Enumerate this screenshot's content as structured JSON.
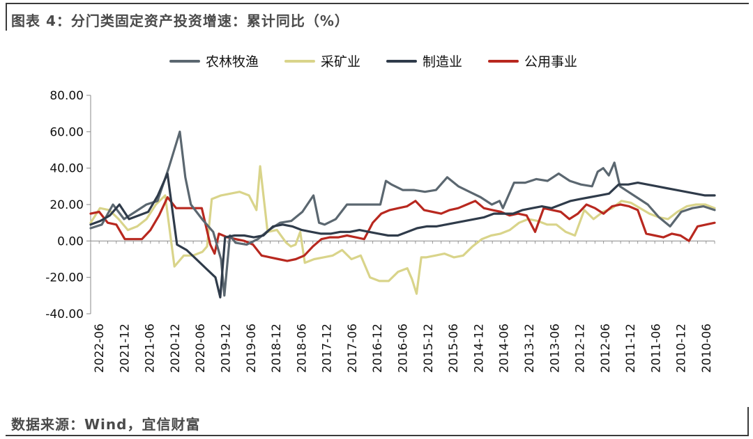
{
  "title": "图表 4：分门类固定资产投资增速：累计同比（%）",
  "source": "数据来源：Wind，宜信财富",
  "chart_data": {
    "type": "line",
    "title": "图表 4：分门类固定资产投资增速：累计同比（%）",
    "xlabel": "",
    "ylabel": "",
    "ylim": [
      -40,
      80
    ],
    "yticks": [
      "80.00",
      "60.00",
      "40.00",
      "20.00",
      "0.00",
      "-20.00",
      "-40.00"
    ],
    "xticks": [
      "2022-06",
      "2021-12",
      "2021-06",
      "2020-12",
      "2020-06",
      "2019-12",
      "2019-06",
      "2018-12",
      "2018-06",
      "2017-12",
      "2017-06",
      "2016-12",
      "2016-06",
      "2015-12",
      "2015-06",
      "2014-12",
      "2014-06",
      "2013-12",
      "2013-06",
      "2012-12",
      "2012-06",
      "2011-12",
      "2011-06",
      "2010-12",
      "2010-06"
    ],
    "legend_position": "top",
    "grid": false,
    "series": [
      {
        "name": "农林牧渔",
        "color": "#5b6770",
        "points": [
          [
            0,
            7
          ],
          [
            1,
            9
          ],
          [
            2,
            20
          ],
          [
            3,
            12
          ],
          [
            4,
            16
          ],
          [
            5,
            20
          ],
          [
            6,
            22
          ],
          [
            7,
            40
          ],
          [
            8,
            60
          ],
          [
            8.5,
            35
          ],
          [
            9,
            20
          ],
          [
            10,
            12
          ],
          [
            11,
            5
          ],
          [
            11.7,
            -10
          ],
          [
            12,
            -30
          ],
          [
            12.5,
            3
          ],
          [
            13,
            -1
          ],
          [
            14,
            -2
          ],
          [
            15,
            1
          ],
          [
            16,
            6
          ],
          [
            17,
            10
          ],
          [
            18,
            11
          ],
          [
            19,
            16
          ],
          [
            20,
            25
          ],
          [
            20.5,
            10
          ],
          [
            21,
            9
          ],
          [
            22,
            12
          ],
          [
            23,
            20
          ],
          [
            24,
            20
          ],
          [
            25,
            20
          ],
          [
            26,
            20
          ],
          [
            26.5,
            33
          ],
          [
            27,
            31
          ],
          [
            28,
            28
          ],
          [
            29,
            28
          ],
          [
            30,
            27
          ],
          [
            31,
            28
          ],
          [
            32,
            35
          ],
          [
            33,
            30
          ],
          [
            34,
            27
          ],
          [
            35,
            24
          ],
          [
            36,
            20
          ],
          [
            36.7,
            22
          ],
          [
            37,
            18
          ],
          [
            38,
            32
          ],
          [
            39,
            32
          ],
          [
            40,
            34
          ],
          [
            41,
            33
          ],
          [
            42,
            37
          ],
          [
            43,
            33
          ],
          [
            44,
            31
          ],
          [
            45,
            30
          ],
          [
            45.5,
            38
          ],
          [
            46,
            40
          ],
          [
            46.5,
            36
          ],
          [
            47,
            43
          ],
          [
            47.5,
            30
          ],
          [
            48,
            28
          ],
          [
            49,
            24
          ],
          [
            50,
            20
          ],
          [
            51,
            13
          ],
          [
            52,
            8
          ],
          [
            53,
            16
          ],
          [
            54,
            18
          ],
          [
            55,
            19
          ],
          [
            56,
            17
          ]
        ]
      },
      {
        "name": "采矿业",
        "color": "#d9d48a",
        "points": [
          [
            0,
            10
          ],
          [
            1,
            18
          ],
          [
            2,
            17
          ],
          [
            3,
            12
          ],
          [
            4,
            6
          ],
          [
            5,
            8
          ],
          [
            6,
            12
          ],
          [
            7,
            20
          ],
          [
            8,
            25
          ],
          [
            9,
            -14
          ],
          [
            10,
            -8
          ],
          [
            11,
            -8
          ],
          [
            12,
            -6
          ],
          [
            12.5,
            -3
          ],
          [
            13,
            23
          ],
          [
            14,
            25
          ],
          [
            15,
            26
          ],
          [
            16,
            27
          ],
          [
            17,
            25
          ],
          [
            17.8,
            17
          ],
          [
            18.2,
            41
          ],
          [
            19,
            5
          ],
          [
            20,
            6
          ],
          [
            21,
            -1
          ],
          [
            21.5,
            -3
          ],
          [
            22,
            -2
          ],
          [
            22.5,
            5
          ],
          [
            23,
            -12
          ],
          [
            24,
            -10
          ],
          [
            25,
            -9
          ],
          [
            26,
            -8
          ],
          [
            27,
            -5
          ],
          [
            28,
            -10
          ],
          [
            29,
            -8
          ],
          [
            30,
            -20
          ],
          [
            31,
            -22
          ],
          [
            32,
            -22
          ],
          [
            33,
            -17
          ],
          [
            34,
            -15
          ],
          [
            34.5,
            -21
          ],
          [
            35,
            -29
          ],
          [
            35.5,
            -9
          ],
          [
            36,
            -9
          ],
          [
            37,
            -8
          ],
          [
            38,
            -7
          ],
          [
            39,
            -9
          ],
          [
            40,
            -8
          ],
          [
            41,
            -3
          ],
          [
            42,
            1
          ],
          [
            43,
            3
          ],
          [
            44,
            4
          ],
          [
            45,
            6
          ],
          [
            46,
            10
          ],
          [
            47,
            12
          ],
          [
            48,
            11
          ],
          [
            49,
            9
          ],
          [
            50,
            9
          ],
          [
            51,
            5
          ],
          [
            52,
            3
          ],
          [
            53,
            17
          ],
          [
            54,
            12
          ],
          [
            55,
            16
          ],
          [
            56,
            18
          ],
          [
            57,
            22
          ],
          [
            58,
            21
          ],
          [
            59,
            18
          ],
          [
            60,
            15
          ],
          [
            61,
            13
          ],
          [
            62,
            12
          ],
          [
            63,
            16
          ],
          [
            64,
            19
          ],
          [
            65,
            20
          ],
          [
            66,
            20
          ],
          [
            67,
            18
          ]
        ]
      },
      {
        "name": "制造业",
        "color": "#2f3b4a",
        "points": [
          [
            0,
            9
          ],
          [
            1,
            11
          ],
          [
            2,
            14
          ],
          [
            3,
            20
          ],
          [
            4,
            12
          ],
          [
            5,
            14
          ],
          [
            6,
            16
          ],
          [
            7,
            25
          ],
          [
            8,
            37
          ],
          [
            9,
            -2
          ],
          [
            10,
            -5
          ],
          [
            11,
            -10
          ],
          [
            12,
            -15
          ],
          [
            13,
            -20
          ],
          [
            13.5,
            -31
          ],
          [
            14,
            2
          ],
          [
            15,
            3
          ],
          [
            16,
            3
          ],
          [
            17,
            2
          ],
          [
            18,
            3
          ],
          [
            19,
            8
          ],
          [
            20,
            9
          ],
          [
            21,
            8
          ],
          [
            22,
            6
          ],
          [
            23,
            5
          ],
          [
            24,
            4
          ],
          [
            25,
            4
          ],
          [
            26,
            5
          ],
          [
            27,
            5
          ],
          [
            28,
            6
          ],
          [
            29,
            5
          ],
          [
            30,
            4
          ],
          [
            31,
            3
          ],
          [
            32,
            3
          ],
          [
            33,
            5
          ],
          [
            34,
            7
          ],
          [
            35,
            8
          ],
          [
            36,
            8
          ],
          [
            37,
            9
          ],
          [
            38,
            10
          ],
          [
            39,
            11
          ],
          [
            40,
            12
          ],
          [
            41,
            13
          ],
          [
            42,
            15
          ],
          [
            43,
            15
          ],
          [
            44,
            15
          ],
          [
            45,
            17
          ],
          [
            46,
            18
          ],
          [
            47,
            19
          ],
          [
            48,
            18
          ],
          [
            49,
            20
          ],
          [
            50,
            22
          ],
          [
            51,
            23
          ],
          [
            52,
            24
          ],
          [
            53,
            25
          ],
          [
            54,
            26
          ],
          [
            55,
            31
          ],
          [
            56,
            31
          ],
          [
            57,
            32
          ],
          [
            58,
            31
          ],
          [
            59,
            30
          ],
          [
            60,
            29
          ],
          [
            61,
            28
          ],
          [
            62,
            27
          ],
          [
            63,
            26
          ],
          [
            64,
            25
          ],
          [
            65,
            25
          ]
        ]
      },
      {
        "name": "公用事业",
        "color": "#b8281f",
        "points": [
          [
            0,
            15
          ],
          [
            1,
            16
          ],
          [
            2,
            10
          ],
          [
            3,
            9
          ],
          [
            4,
            1
          ],
          [
            5,
            1
          ],
          [
            6,
            1
          ],
          [
            7,
            6
          ],
          [
            8,
            14
          ],
          [
            9,
            24
          ],
          [
            10,
            18
          ],
          [
            11,
            18
          ],
          [
            12,
            18
          ],
          [
            13,
            18
          ],
          [
            14,
            -2
          ],
          [
            14.5,
            -7
          ],
          [
            15,
            4
          ],
          [
            16,
            2
          ],
          [
            17,
            1
          ],
          [
            18,
            0
          ],
          [
            19,
            -2
          ],
          [
            20,
            -8
          ],
          [
            21,
            -9
          ],
          [
            22,
            -10
          ],
          [
            23,
            -11
          ],
          [
            24,
            -10
          ],
          [
            25,
            -8
          ],
          [
            26,
            -3
          ],
          [
            27,
            1
          ],
          [
            28,
            2
          ],
          [
            29,
            2
          ],
          [
            30,
            3
          ],
          [
            31,
            2
          ],
          [
            32,
            1
          ],
          [
            33,
            10
          ],
          [
            34,
            15
          ],
          [
            35,
            17
          ],
          [
            36,
            18
          ],
          [
            37,
            19
          ],
          [
            38,
            22
          ],
          [
            39,
            17
          ],
          [
            40,
            16
          ],
          [
            41,
            15
          ],
          [
            42,
            17
          ],
          [
            43,
            18
          ],
          [
            44,
            20
          ],
          [
            45,
            22
          ],
          [
            46,
            18
          ],
          [
            47,
            17
          ],
          [
            48,
            16
          ],
          [
            49,
            14
          ],
          [
            50,
            15
          ],
          [
            51,
            14
          ],
          [
            52,
            5
          ],
          [
            53,
            18
          ],
          [
            54,
            17
          ],
          [
            55,
            16
          ],
          [
            56,
            12
          ],
          [
            57,
            15
          ],
          [
            58,
            20
          ],
          [
            59,
            18
          ],
          [
            60,
            15
          ],
          [
            61,
            19
          ],
          [
            62,
            20
          ],
          [
            63,
            19
          ],
          [
            64,
            17
          ],
          [
            65,
            4
          ],
          [
            66,
            3
          ],
          [
            67,
            2
          ],
          [
            68,
            4
          ],
          [
            69,
            3
          ],
          [
            70,
            0
          ],
          [
            71,
            8
          ],
          [
            72,
            9
          ],
          [
            73,
            10
          ]
        ]
      }
    ]
  }
}
